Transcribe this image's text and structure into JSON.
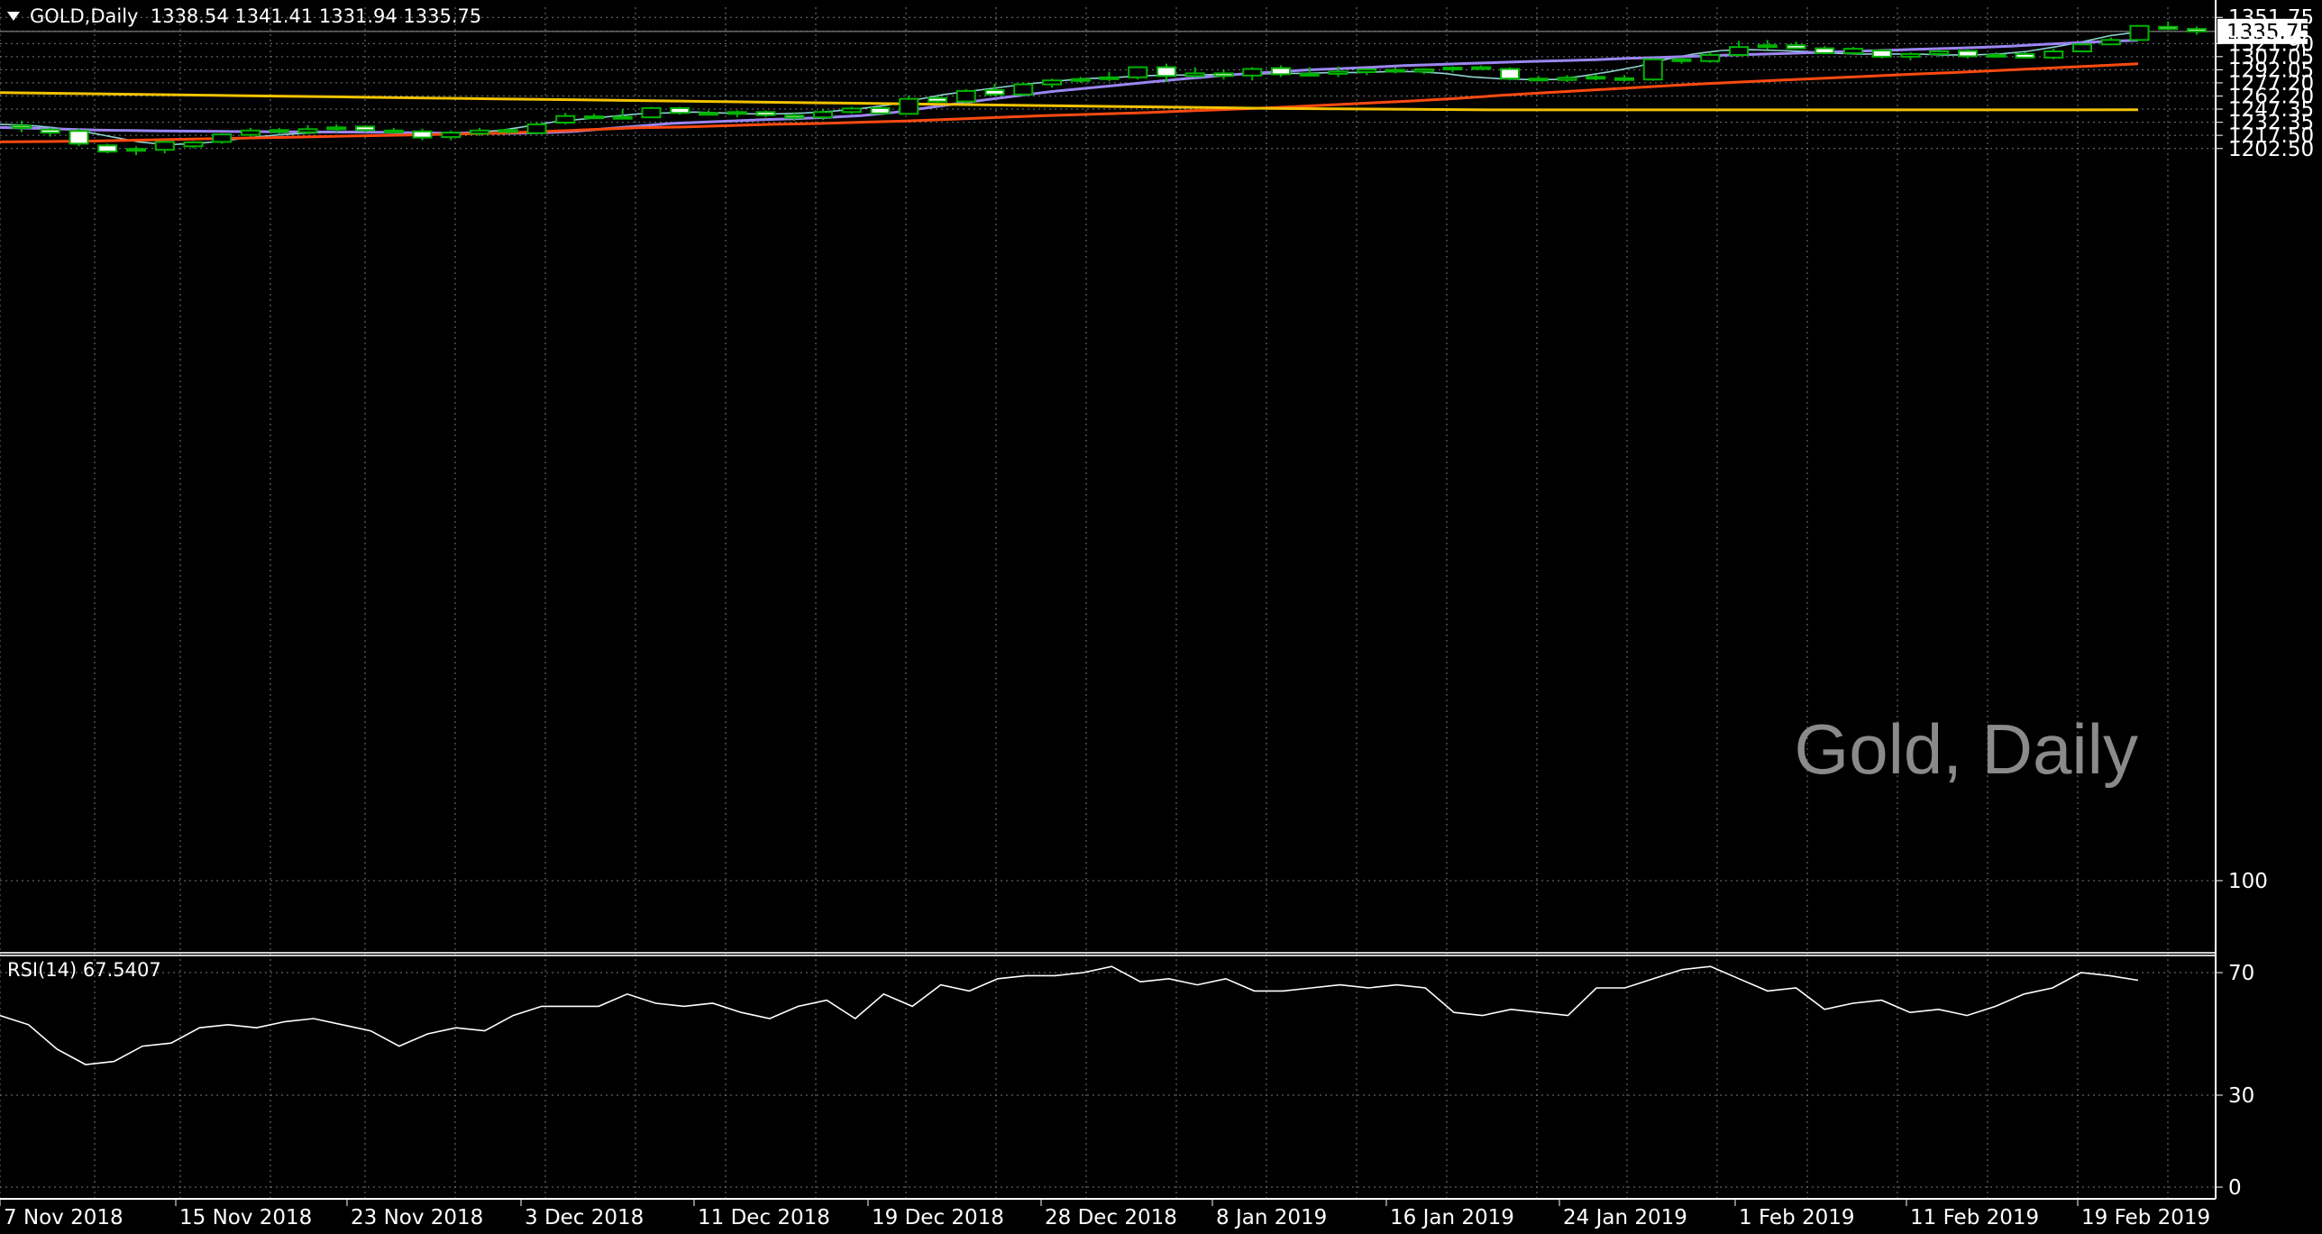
{
  "header": {
    "symbol": "GOLD,Daily",
    "ohlc": "1338.54 1341.41 1331.94 1335.75"
  },
  "rsi_header": "RSI(14) 67.5407",
  "watermark": "Gold, Daily",
  "current_price": "1335.75",
  "colors": {
    "background": "#000000",
    "grid": "#6f7d7d",
    "bull_candle": "#00b400",
    "bear_candle": "#ffffff",
    "ma_fast": "#8fd3d1",
    "ma_medium": "#9b86f0",
    "ma_slow": "#ff4a10",
    "ma_longest": "#f2c200",
    "rsi_line": "#ffffff"
  },
  "chart_data": [
    {
      "type": "candlestick",
      "title": "GOLD,Daily",
      "yticks": [
        "1351.75",
        "1335.75",
        "1321.90",
        "1307.05",
        "1292.05",
        "1277.20",
        "1262.20",
        "1247.35",
        "1232.35",
        "1217.50",
        "1202.50"
      ],
      "xticks": [
        "7 Nov 2018",
        "15 Nov 2018",
        "23 Nov 2018",
        "3 Dec 2018",
        "11 Dec 2018",
        "19 Dec 2018",
        "28 Dec 2018",
        "8 Jan 2019",
        "16 Jan 2019",
        "24 Jan 2019",
        "1 Feb 2019",
        "11 Feb 2019",
        "19 Feb 2019"
      ],
      "ylim": [
        1191.0,
        1356.0
      ],
      "grid": true,
      "candles": [
        {
          "o": 1228.5,
          "h": 1234.0,
          "l": 1221.0,
          "c": 1226.0
        },
        {
          "o": 1224.0,
          "h": 1226.0,
          "l": 1216.0,
          "c": 1220.5
        },
        {
          "o": 1222.5,
          "h": 1225.0,
          "l": 1205.0,
          "c": 1208.0
        },
        {
          "o": 1206.0,
          "h": 1208.0,
          "l": 1197.0,
          "c": 1199.0
        },
        {
          "o": 1200.5,
          "h": 1205.0,
          "l": 1195.0,
          "c": 1202.0
        },
        {
          "o": 1201.0,
          "h": 1212.0,
          "l": 1197.0,
          "c": 1210.0
        },
        {
          "o": 1205.0,
          "h": 1211.0,
          "l": 1203.0,
          "c": 1209.5
        },
        {
          "o": 1210.0,
          "h": 1220.0,
          "l": 1208.0,
          "c": 1218.5
        },
        {
          "o": 1218.0,
          "h": 1226.0,
          "l": 1216.0,
          "c": 1223.0
        },
        {
          "o": 1223.5,
          "h": 1226.0,
          "l": 1219.0,
          "c": 1221.5
        },
        {
          "o": 1221.0,
          "h": 1229.0,
          "l": 1219.0,
          "c": 1224.5
        },
        {
          "o": 1224.5,
          "h": 1230.0,
          "l": 1221.0,
          "c": 1226.5
        },
        {
          "o": 1227.5,
          "h": 1229.0,
          "l": 1221.0,
          "c": 1223.5
        },
        {
          "o": 1223.0,
          "h": 1226.0,
          "l": 1220.0,
          "c": 1221.5
        },
        {
          "o": 1222.0,
          "h": 1225.0,
          "l": 1212.0,
          "c": 1215.0
        },
        {
          "o": 1215.5,
          "h": 1223.0,
          "l": 1212.0,
          "c": 1220.5
        },
        {
          "o": 1219.5,
          "h": 1226.0,
          "l": 1217.0,
          "c": 1223.0
        },
        {
          "o": 1223.5,
          "h": 1225.0,
          "l": 1219.0,
          "c": 1221.5
        },
        {
          "o": 1220.0,
          "h": 1233.0,
          "l": 1219.0,
          "c": 1230.0
        },
        {
          "o": 1232.0,
          "h": 1243.0,
          "l": 1230.0,
          "c": 1239.5
        },
        {
          "o": 1239.0,
          "h": 1242.0,
          "l": 1236.0,
          "c": 1237.5
        },
        {
          "o": 1237.5,
          "h": 1247.0,
          "l": 1236.0,
          "c": 1238.5
        },
        {
          "o": 1238.0,
          "h": 1250.0,
          "l": 1237.0,
          "c": 1248.5
        },
        {
          "o": 1248.5,
          "h": 1250.0,
          "l": 1241.0,
          "c": 1243.0
        },
        {
          "o": 1243.0,
          "h": 1246.0,
          "l": 1240.0,
          "c": 1242.0
        },
        {
          "o": 1242.0,
          "h": 1246.0,
          "l": 1238.0,
          "c": 1244.0
        },
        {
          "o": 1244.0,
          "h": 1246.0,
          "l": 1238.0,
          "c": 1240.5
        },
        {
          "o": 1240.0,
          "h": 1244.0,
          "l": 1234.0,
          "c": 1237.5
        },
        {
          "o": 1238.0,
          "h": 1247.0,
          "l": 1235.0,
          "c": 1244.0
        },
        {
          "o": 1244.0,
          "h": 1250.0,
          "l": 1242.0,
          "c": 1248.0
        },
        {
          "o": 1248.5,
          "h": 1250.0,
          "l": 1242.0,
          "c": 1242.5
        },
        {
          "o": 1242.0,
          "h": 1263.0,
          "l": 1241.0,
          "c": 1259.0
        },
        {
          "o": 1260.0,
          "h": 1262.0,
          "l": 1254.0,
          "c": 1256.0
        },
        {
          "o": 1256.0,
          "h": 1270.0,
          "l": 1254.0,
          "c": 1268.0
        },
        {
          "o": 1269.0,
          "h": 1276.0,
          "l": 1262.0,
          "c": 1264.0
        },
        {
          "o": 1264.0,
          "h": 1278.0,
          "l": 1262.0,
          "c": 1275.5
        },
        {
          "o": 1275.5,
          "h": 1282.0,
          "l": 1272.0,
          "c": 1280.0
        },
        {
          "o": 1280.0,
          "h": 1284.0,
          "l": 1277.0,
          "c": 1281.5
        },
        {
          "o": 1281.5,
          "h": 1290.0,
          "l": 1279.0,
          "c": 1283.5
        },
        {
          "o": 1283.5,
          "h": 1296.0,
          "l": 1281.0,
          "c": 1295.0
        },
        {
          "o": 1295.0,
          "h": 1299.0,
          "l": 1278.0,
          "c": 1285.0
        },
        {
          "o": 1285.0,
          "h": 1295.0,
          "l": 1283.0,
          "c": 1288.0
        },
        {
          "o": 1288.0,
          "h": 1292.0,
          "l": 1281.0,
          "c": 1285.0
        },
        {
          "o": 1285.5,
          "h": 1295.0,
          "l": 1280.0,
          "c": 1293.0
        },
        {
          "o": 1294.0,
          "h": 1297.0,
          "l": 1284.0,
          "c": 1287.0
        },
        {
          "o": 1286.5,
          "h": 1295.0,
          "l": 1285.0,
          "c": 1287.5
        },
        {
          "o": 1287.5,
          "h": 1296.0,
          "l": 1284.0,
          "c": 1290.0
        },
        {
          "o": 1289.5,
          "h": 1293.0,
          "l": 1286.0,
          "c": 1292.5
        },
        {
          "o": 1292.0,
          "h": 1295.0,
          "l": 1288.0,
          "c": 1291.0
        },
        {
          "o": 1290.0,
          "h": 1294.0,
          "l": 1287.0,
          "c": 1292.5
        },
        {
          "o": 1292.5,
          "h": 1296.0,
          "l": 1289.0,
          "c": 1294.5
        },
        {
          "o": 1295.0,
          "h": 1297.0,
          "l": 1292.0,
          "c": 1293.0
        },
        {
          "o": 1293.0,
          "h": 1295.0,
          "l": 1280.0,
          "c": 1282.0
        },
        {
          "o": 1282.0,
          "h": 1285.0,
          "l": 1279.0,
          "c": 1280.5
        },
        {
          "o": 1280.5,
          "h": 1286.0,
          "l": 1278.0,
          "c": 1283.0
        },
        {
          "o": 1284.0,
          "h": 1287.0,
          "l": 1280.0,
          "c": 1282.5
        },
        {
          "o": 1282.5,
          "h": 1286.0,
          "l": 1278.5,
          "c": 1281.0
        },
        {
          "o": 1281.0,
          "h": 1305.0,
          "l": 1279.5,
          "c": 1304.0
        },
        {
          "o": 1304.0,
          "h": 1306.0,
          "l": 1299.0,
          "c": 1302.0
        },
        {
          "o": 1302.0,
          "h": 1312.0,
          "l": 1300.0,
          "c": 1309.0
        },
        {
          "o": 1309.0,
          "h": 1325.0,
          "l": 1307.0,
          "c": 1318.0
        },
        {
          "o": 1318.0,
          "h": 1326.0,
          "l": 1315.0,
          "c": 1320.0
        },
        {
          "o": 1320.0,
          "h": 1324.0,
          "l": 1316.0,
          "c": 1316.5
        },
        {
          "o": 1316.5,
          "h": 1319.0,
          "l": 1310.0,
          "c": 1311.0
        },
        {
          "o": 1311.0,
          "h": 1318.0,
          "l": 1309.0,
          "c": 1316.0
        },
        {
          "o": 1314.0,
          "h": 1316.0,
          "l": 1305.0,
          "c": 1307.0
        },
        {
          "o": 1307.0,
          "h": 1312.0,
          "l": 1303.0,
          "c": 1310.0
        },
        {
          "o": 1310.0,
          "h": 1315.0,
          "l": 1307.0,
          "c": 1313.0
        },
        {
          "o": 1313.5,
          "h": 1315.0,
          "l": 1305.0,
          "c": 1307.5
        },
        {
          "o": 1307.5,
          "h": 1312.0,
          "l": 1306.0,
          "c": 1309.0
        },
        {
          "o": 1310.0,
          "h": 1312.0,
          "l": 1305.0,
          "c": 1306.0
        },
        {
          "o": 1306.0,
          "h": 1316.0,
          "l": 1304.0,
          "c": 1313.0
        },
        {
          "o": 1313.0,
          "h": 1322.0,
          "l": 1312.0,
          "c": 1321.0
        },
        {
          "o": 1321.0,
          "h": 1329.0,
          "l": 1320.0,
          "c": 1326.0
        },
        {
          "o": 1326.0,
          "h": 1343.0,
          "l": 1325.0,
          "c": 1342.0
        },
        {
          "o": 1341.0,
          "h": 1347.0,
          "l": 1337.0,
          "c": 1338.5
        },
        {
          "o": 1338.54,
          "h": 1341.41,
          "l": 1331.94,
          "c": 1335.75
        }
      ],
      "series": [
        {
          "values": [
            1230,
            1229,
            1226,
            1222,
            1216,
            1210,
            1207,
            1208,
            1211,
            1215,
            1218,
            1220,
            1221,
            1222,
            1221,
            1220,
            1220,
            1221,
            1223,
            1228,
            1233,
            1236,
            1239,
            1242,
            1243,
            1244,
            1243,
            1242,
            1242,
            1243,
            1245,
            1248,
            1252,
            1258,
            1264,
            1268,
            1272,
            1276,
            1279,
            1282,
            1283,
            1285,
            1286,
            1286,
            1287,
            1287,
            1288,
            1288,
            1289,
            1289,
            1290,
            1290,
            1288,
            1284,
            1282,
            1281,
            1281,
            1285,
            1290,
            1296,
            1304,
            1310,
            1314,
            1315,
            1314,
            1313,
            1311,
            1310,
            1310,
            1310,
            1309,
            1309,
            1310,
            1313,
            1318,
            1324,
            1331,
            1335
          ]
        },
        {
          "values": [
            1226.5,
            1225.5,
            1224.5,
            1223.5,
            1223,
            1222.5,
            1222.3,
            1222,
            1221.7,
            1221.5,
            1221.3,
            1221.2,
            1221,
            1220.5,
            1220,
            1219.8,
            1219.8,
            1220.5,
            1222,
            1225,
            1228,
            1231,
            1232.5,
            1234,
            1235.5,
            1236.5,
            1238,
            1240,
            1243.5,
            1248.5,
            1253.5,
            1258.5,
            1263,
            1267.5,
            1271,
            1274.5,
            1278,
            1281.5,
            1284.5,
            1287.5,
            1289.7,
            1292,
            1293.4,
            1295,
            1296.9,
            1298.1,
            1299.3,
            1300.4,
            1301.6,
            1302.6,
            1303.6,
            1305,
            1306.2,
            1307.4,
            1308.6,
            1309.7,
            1310.8,
            1311.9,
            1313,
            1314.1,
            1315.3,
            1316.4,
            1317.5,
            1319,
            1321,
            1322.7,
            1324.4,
            1325.5
          ]
        },
        {
          "values": [
            1210,
            1210.5,
            1211,
            1212,
            1213,
            1214,
            1215,
            1216,
            1217,
            1218,
            1219,
            1220,
            1222,
            1224,
            1226,
            1227,
            1228.5,
            1230,
            1231,
            1232.5,
            1234,
            1236,
            1238,
            1240,
            1241.5,
            1243,
            1245,
            1247,
            1249,
            1251.5,
            1254,
            1256.5,
            1259.5,
            1263,
            1266,
            1269,
            1272,
            1275,
            1277.5,
            1280,
            1282.3,
            1284.6,
            1287,
            1289,
            1291.5,
            1293.9,
            1296.4,
            1299
          ]
        },
        {
          "values": [
            1266,
            1265,
            1264,
            1263,
            1262,
            1261,
            1260,
            1259,
            1258,
            1257,
            1256,
            1255,
            1254,
            1253,
            1252,
            1251,
            1250,
            1249,
            1248,
            1247.5,
            1247,
            1246.5,
            1246.5,
            1246.5,
            1246.5,
            1246.5,
            1246.5,
            1246.5,
            1246.5,
            1246.5,
            1246.6
          ]
        }
      ]
    },
    {
      "type": "line",
      "title": "RSI(14) 67.5407",
      "yticks": [
        "100",
        "70",
        "30",
        "0"
      ],
      "ylim": [
        0,
        100
      ],
      "series": [
        {
          "name": "RSI(14)",
          "values": [
            56,
            53,
            45,
            40,
            41,
            46,
            47,
            52,
            53,
            52,
            54,
            55,
            53,
            51,
            46,
            50,
            52,
            51,
            56,
            59,
            59,
            59,
            63,
            60,
            59,
            60,
            57,
            55,
            59,
            61,
            55,
            63,
            59,
            66,
            64,
            68,
            69,
            69,
            70,
            72,
            67,
            68,
            66,
            68,
            64,
            64,
            65,
            66,
            65,
            66,
            65,
            57,
            56,
            58,
            57,
            56,
            65,
            65,
            68,
            71,
            72,
            68,
            64,
            65,
            58,
            60,
            61,
            57,
            58,
            56,
            59,
            63,
            65,
            70,
            69,
            67.5
          ]
        }
      ]
    }
  ]
}
